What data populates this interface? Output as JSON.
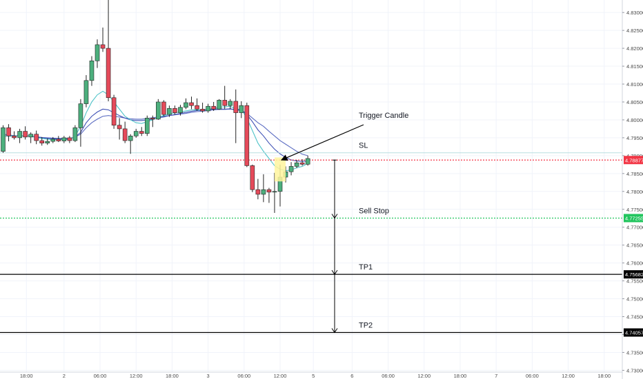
{
  "chart_data": {
    "type": "candlestick",
    "price_axis": {
      "ticks": [
        "4.83000",
        "4.82500",
        "4.82000",
        "4.81500",
        "4.81000",
        "4.80500",
        "4.80000",
        "4.79500",
        "4.79000",
        "4.78500",
        "4.78000",
        "4.77500",
        "4.77000",
        "4.76500",
        "4.76000",
        "4.75500",
        "4.75000",
        "4.74500",
        "4.74000",
        "4.73500",
        "4.73000"
      ],
      "ylim": [
        4.7295,
        4.8335
      ]
    },
    "time_axis": {
      "ticks": [
        "18:00",
        "2",
        "06:00",
        "12:00",
        "18:00",
        "3",
        "06:00",
        "12:00",
        "5",
        "6",
        "06:00",
        "12:00",
        "18:00",
        "7",
        "06:00",
        "12:00",
        "18:00"
      ],
      "bar_interval_hours": 1
    },
    "candles": [
      {
        "t": 0,
        "o": 4.7912,
        "h": 4.7985,
        "l": 4.7908,
        "c": 4.7978
      },
      {
        "t": 1,
        "o": 4.7978,
        "h": 4.7988,
        "l": 4.794,
        "c": 4.7955
      },
      {
        "t": 2,
        "o": 4.7955,
        "h": 4.7968,
        "l": 4.7945,
        "c": 4.795
      },
      {
        "t": 3,
        "o": 4.795,
        "h": 4.7975,
        "l": 4.7935,
        "c": 4.7968
      },
      {
        "t": 4,
        "o": 4.7968,
        "h": 4.7982,
        "l": 4.7945,
        "c": 4.7952
      },
      {
        "t": 5,
        "o": 4.7952,
        "h": 4.7965,
        "l": 4.7935,
        "c": 4.796
      },
      {
        "t": 6,
        "o": 4.796,
        "h": 4.797,
        "l": 4.7932,
        "c": 4.7942
      },
      {
        "t": 7,
        "o": 4.7942,
        "h": 4.7952,
        "l": 4.7928,
        "c": 4.7935
      },
      {
        "t": 8,
        "o": 4.7935,
        "h": 4.7948,
        "l": 4.793,
        "c": 4.794
      },
      {
        "t": 9,
        "o": 4.794,
        "h": 4.7952,
        "l": 4.7935,
        "c": 4.7946
      },
      {
        "t": 10,
        "o": 4.7946,
        "h": 4.7955,
        "l": 4.7938,
        "c": 4.7941
      },
      {
        "t": 11,
        "o": 4.7941,
        "h": 4.7955,
        "l": 4.7935,
        "c": 4.795
      },
      {
        "t": 12,
        "o": 4.795,
        "h": 4.7955,
        "l": 4.7935,
        "c": 4.7942
      },
      {
        "t": 13,
        "o": 4.7942,
        "h": 4.7985,
        "l": 4.7938,
        "c": 4.7978
      },
      {
        "t": 14,
        "o": 4.7978,
        "h": 4.8058,
        "l": 4.7925,
        "c": 4.8045
      },
      {
        "t": 15,
        "o": 4.8045,
        "h": 4.8125,
        "l": 4.8035,
        "c": 4.811
      },
      {
        "t": 16,
        "o": 4.811,
        "h": 4.8178,
        "l": 4.8095,
        "c": 4.8165
      },
      {
        "t": 17,
        "o": 4.8165,
        "h": 4.8225,
        "l": 4.8145,
        "c": 4.821
      },
      {
        "t": 18,
        "o": 4.821,
        "h": 4.8258,
        "l": 4.819,
        "c": 4.82
      },
      {
        "t": 19,
        "o": 4.82,
        "h": 4.8335,
        "l": 4.8052,
        "c": 4.8062
      },
      {
        "t": 20,
        "o": 4.8062,
        "h": 4.807,
        "l": 4.7975,
        "c": 4.7985
      },
      {
        "t": 21,
        "o": 4.7985,
        "h": 4.8005,
        "l": 4.7945,
        "c": 4.7975
      },
      {
        "t": 22,
        "o": 4.7975,
        "h": 4.7995,
        "l": 4.7935,
        "c": 4.7942
      },
      {
        "t": 23,
        "o": 4.7942,
        "h": 4.796,
        "l": 4.7905,
        "c": 4.7955
      },
      {
        "t": 24,
        "o": 4.7955,
        "h": 4.7975,
        "l": 4.795,
        "c": 4.7968
      },
      {
        "t": 25,
        "o": 4.7968,
        "h": 4.798,
        "l": 4.7955,
        "c": 4.7962
      },
      {
        "t": 26,
        "o": 4.7962,
        "h": 4.8012,
        "l": 4.7955,
        "c": 4.8005
      },
      {
        "t": 27,
        "o": 4.8005,
        "h": 4.8012,
        "l": 4.798,
        "c": 4.8002
      },
      {
        "t": 28,
        "o": 4.8002,
        "h": 4.8058,
        "l": 4.8,
        "c": 4.805
      },
      {
        "t": 29,
        "o": 4.805,
        "h": 4.8055,
        "l": 4.801,
        "c": 4.8015
      },
      {
        "t": 30,
        "o": 4.8015,
        "h": 4.804,
        "l": 4.8008,
        "c": 4.8032
      },
      {
        "t": 31,
        "o": 4.8032,
        "h": 4.804,
        "l": 4.8015,
        "c": 4.802
      },
      {
        "t": 32,
        "o": 4.802,
        "h": 4.8042,
        "l": 4.8012,
        "c": 4.8035
      },
      {
        "t": 33,
        "o": 4.8035,
        "h": 4.806,
        "l": 4.803,
        "c": 4.8048
      },
      {
        "t": 34,
        "o": 4.8048,
        "h": 4.8065,
        "l": 4.803,
        "c": 4.804
      },
      {
        "t": 35,
        "o": 4.804,
        "h": 4.806,
        "l": 4.8025,
        "c": 4.803
      },
      {
        "t": 36,
        "o": 4.803,
        "h": 4.8048,
        "l": 4.802,
        "c": 4.8025
      },
      {
        "t": 37,
        "o": 4.8025,
        "h": 4.8045,
        "l": 4.802,
        "c": 4.8038
      },
      {
        "t": 38,
        "o": 4.8038,
        "h": 4.805,
        "l": 4.8025,
        "c": 4.803
      },
      {
        "t": 39,
        "o": 4.803,
        "h": 4.8058,
        "l": 4.8028,
        "c": 4.8055
      },
      {
        "t": 40,
        "o": 4.8055,
        "h": 4.8095,
        "l": 4.803,
        "c": 4.804
      },
      {
        "t": 41,
        "o": 4.804,
        "h": 4.8058,
        "l": 4.803,
        "c": 4.8052
      },
      {
        "t": 42,
        "o": 4.8052,
        "h": 4.8085,
        "l": 4.7935,
        "c": 4.802
      },
      {
        "t": 43,
        "o": 4.802,
        "h": 4.8052,
        "l": 4.8005,
        "c": 4.804
      },
      {
        "t": 44,
        "o": 4.804,
        "h": 4.8048,
        "l": 4.7868,
        "c": 4.7872
      },
      {
        "t": 45,
        "o": 4.7872,
        "h": 4.7875,
        "l": 4.7798,
        "c": 4.7805
      },
      {
        "t": 46,
        "o": 4.7805,
        "h": 4.7835,
        "l": 4.7778,
        "c": 4.7792
      },
      {
        "t": 47,
        "o": 4.7792,
        "h": 4.7848,
        "l": 4.777,
        "c": 4.7805
      },
      {
        "t": 48,
        "o": 4.7805,
        "h": 4.781,
        "l": 4.7768,
        "c": 4.7798
      },
      {
        "t": 49,
        "o": 4.7798,
        "h": 4.7852,
        "l": 4.774,
        "c": 4.78
      },
      {
        "t": 50,
        "o": 4.78,
        "h": 4.7875,
        "l": 4.7758,
        "c": 4.784
      },
      {
        "t": 51,
        "o": 4.784,
        "h": 4.787,
        "l": 4.7825,
        "c": 4.7855
      },
      {
        "t": 52,
        "o": 4.7855,
        "h": 4.7882,
        "l": 4.7845,
        "c": 4.787
      },
      {
        "t": 53,
        "o": 4.787,
        "h": 4.7888,
        "l": 4.7865,
        "c": 4.788
      },
      {
        "t": 54,
        "o": 4.788,
        "h": 4.789,
        "l": 4.7872,
        "c": 4.7876
      },
      {
        "t": 55,
        "o": 4.7876,
        "h": 4.79,
        "l": 4.7872,
        "c": 4.7892
      }
    ],
    "moving_averages": [
      {
        "color": "#5b6cc2",
        "values": [
          4.796,
          4.7958,
          4.7956,
          4.7955,
          4.7955,
          4.7954,
          4.7953,
          4.7951,
          4.795,
          4.7949,
          4.7948,
          4.7948,
          4.7948,
          4.7952,
          4.796,
          4.7978,
          4.7992,
          4.8002,
          4.801,
          4.8012,
          4.801,
          4.8008,
          4.8005,
          4.8003,
          4.8002,
          4.8002,
          4.8004,
          4.8006,
          4.8008,
          4.801,
          4.8012,
          4.8014,
          4.8016,
          4.8018,
          4.8021,
          4.8023,
          4.8024,
          4.8026,
          4.8028,
          4.8029,
          4.8029,
          4.803,
          4.8028,
          4.8026,
          4.8018,
          4.8005,
          4.7992,
          4.7982,
          4.7968,
          4.7955,
          4.7942,
          4.7932,
          4.7922,
          4.7912,
          4.7904,
          4.79
        ]
      },
      {
        "color": "#3f51b5",
        "values": [
          4.7955,
          4.7955,
          4.7955,
          4.7955,
          4.7955,
          4.7955,
          4.7952,
          4.795,
          4.7948,
          4.7947,
          4.7947,
          4.7947,
          4.7947,
          4.7952,
          4.7965,
          4.7992,
          4.801,
          4.8022,
          4.803,
          4.8028,
          4.802,
          4.8012,
          4.8005,
          4.8,
          4.7998,
          4.7998,
          4.8,
          4.8002,
          4.8006,
          4.8008,
          4.8012,
          4.8015,
          4.8018,
          4.8021,
          4.8024,
          4.8026,
          4.8027,
          4.8028,
          4.803,
          4.8031,
          4.803,
          4.8031,
          4.8028,
          4.8028,
          4.8015,
          4.7995,
          4.7972,
          4.7955,
          4.7935,
          4.7918,
          4.7905,
          4.7895,
          4.7888,
          4.7885,
          4.7884,
          4.7885
        ]
      },
      {
        "color": "#4fc3c8",
        "values": [
          4.7955,
          4.7955,
          4.7955,
          4.7955,
          4.7955,
          4.7955,
          4.795,
          4.7948,
          4.7946,
          4.7945,
          4.7945,
          4.7945,
          4.7945,
          4.7955,
          4.7982,
          4.802,
          4.805,
          4.807,
          4.808,
          4.807,
          4.805,
          4.803,
          4.801,
          4.8,
          4.7992,
          4.799,
          4.7995,
          4.8,
          4.8008,
          4.8012,
          4.8016,
          4.802,
          4.8022,
          4.8025,
          4.8028,
          4.8028,
          4.8028,
          4.803,
          4.8032,
          4.8036,
          4.8036,
          4.8038,
          4.803,
          4.803,
          4.8005,
          4.797,
          4.7935,
          4.7912,
          4.7892,
          4.7872,
          4.7862,
          4.7858,
          4.786,
          4.7866,
          4.787,
          4.7878
        ]
      }
    ],
    "horizontal_lines": [
      {
        "label": "SL",
        "price": 4.7908,
        "price_label": "",
        "color": "#b7dde0",
        "style": "solid"
      },
      {
        "label": "",
        "price": 4.78877,
        "price_label": "4.78877",
        "color": "#f23645",
        "style": "dotted"
      },
      {
        "label": "Sell Stop",
        "price": 4.77255,
        "price_label": "4.77255",
        "color": "#22c55e",
        "style": "dotted"
      },
      {
        "label": "TP1",
        "price": 4.75682,
        "price_label": "4.75682",
        "color": "#000000",
        "style": "solid"
      },
      {
        "label": "TP2",
        "price": 4.74057,
        "price_label": "4.74057",
        "color": "#000000",
        "style": "solid"
      }
    ],
    "annotations": [
      {
        "text": "Trigger Candle",
        "arrow_to_candle": 50
      },
      {
        "text": "SL"
      },
      {
        "text": "Sell Stop"
      },
      {
        "text": "TP1"
      },
      {
        "text": "TP2"
      }
    ],
    "colors": {
      "up": "#4caf7d",
      "down": "#e54a5a",
      "highlight": "#fff59d",
      "grid": "#f0f3fa",
      "axis_text": "#4a4a4a"
    }
  }
}
